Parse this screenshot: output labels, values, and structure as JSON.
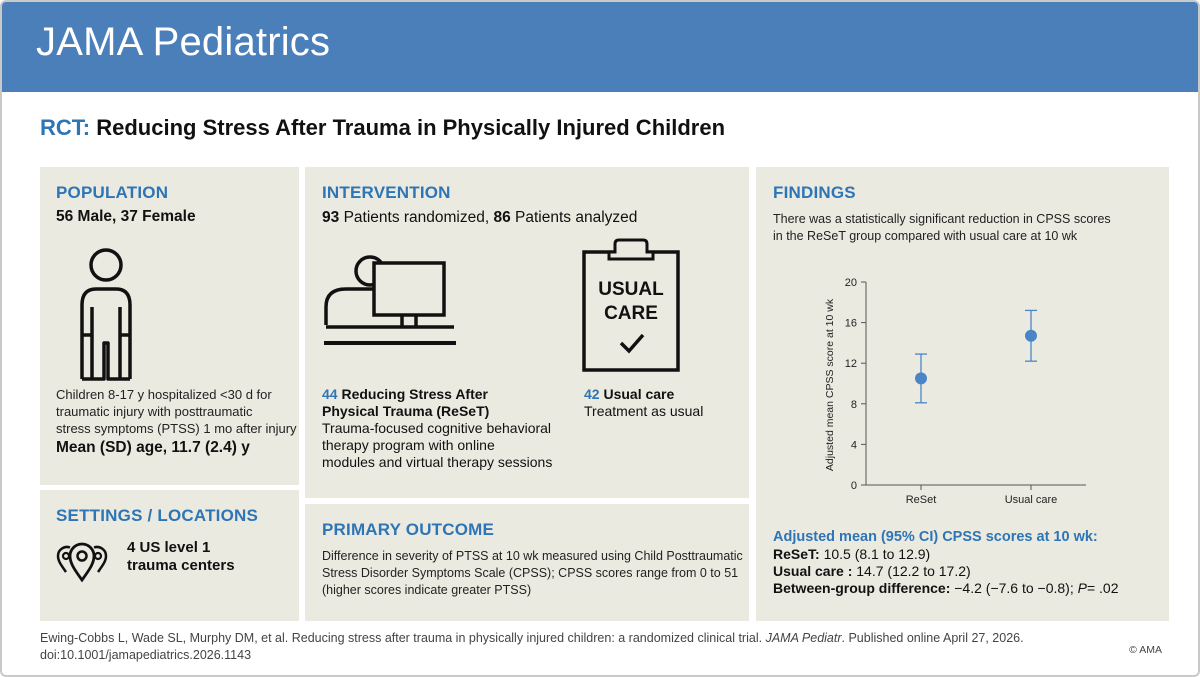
{
  "header": {
    "brand": "JAMA Pediatrics"
  },
  "title": {
    "prefix": "RCT:",
    "text": "Reducing Stress After Trauma in Physically Injured Children"
  },
  "population": {
    "heading": "POPULATION",
    "counts": "56 Male, 37 Female",
    "description_lines": [
      "Children 8-17 y hospitalized <30 d for",
      "traumatic injury with posttraumatic",
      "stress symptoms (PTSS) 1 mo after injury"
    ],
    "age": "Mean (SD) age, 11.7 (2.4) y",
    "icon": "person-icon"
  },
  "settings": {
    "heading": "SETTINGS / LOCATIONS",
    "line1": "4 US level 1",
    "line2": "trauma centers",
    "icon": "location-pins-icon"
  },
  "intervention": {
    "heading": "INTERVENTION",
    "randomized_count": "93",
    "randomized_text": "Patients randomized,",
    "analyzed_count": "86",
    "analyzed_text": "Patients analyzed",
    "arm1": {
      "count": "44",
      "title_line1": "Reducing Stress After",
      "title_line2": "Physical Trauma (ReSeT)",
      "desc_lines": [
        "Trauma-focused cognitive behavioral",
        "therapy program with online",
        "modules and virtual therapy sessions"
      ],
      "icon": "computer-user-icon"
    },
    "arm2": {
      "count": "42",
      "title": "Usual care",
      "desc": "Treatment as usual",
      "clipboard_line1": "USUAL",
      "clipboard_line2": "CARE",
      "icon": "clipboard-check-icon"
    }
  },
  "outcome": {
    "heading": "PRIMARY OUTCOME",
    "lines": [
      "Difference in severity of PTSS at 10 wk measured using Child Posttraumatic",
      "Stress Disorder Symptoms Scale (CPSS); CPSS scores range from 0 to 51",
      "(higher scores indicate greater PTSS)"
    ]
  },
  "findings": {
    "heading": "FINDINGS",
    "summary_lines": [
      "There was a statistically significant reduction in CPSS scores",
      "in the ReSeT group compared with usual care at 10 wk"
    ],
    "results_heading": "Adjusted mean (95% CI) CPSS scores at 10 wk:",
    "reset_label": "ReSeT:",
    "reset_value": "10.5 (8.1 to 12.9)",
    "usual_label": "Usual care :",
    "usual_value": "14.7 (12.2 to 17.2)",
    "diff_label": "Between-group difference:",
    "diff_value": "−4.2 (−7.6 to −0.8);",
    "p_label": "P",
    "p_value": "= .02"
  },
  "chart_data": {
    "type": "scatter",
    "ylabel": "Adjusted mean CPSS score at 10 wk",
    "ylim": [
      0,
      20
    ],
    "yticks": [
      "0",
      "4",
      "8",
      "12",
      "16",
      "20"
    ],
    "categories": [
      "ReSet",
      "Usual care"
    ],
    "series": [
      {
        "values": [
          10.5,
          14.7
        ],
        "ci_low": [
          8.1,
          12.2
        ],
        "ci_high": [
          12.9,
          17.2
        ]
      }
    ],
    "color": "#4a86c5"
  },
  "footer": {
    "citation_part1": "Ewing-Cobbs L, Wade SL, Murphy DM, et al. Reducing stress after trauma in physically injured children: a randomized clinical trial.",
    "journal": "JAMA Pediatr",
    "citation_part2": ". Published online April 27, 2026.",
    "doi": "doi:10.1001/jamapediatrics.2026.1143",
    "copyright": "© AMA"
  },
  "colors": {
    "header_bg": "#4a7fba",
    "accent": "#2e75b6",
    "panel_bg": "#ebeae1"
  }
}
